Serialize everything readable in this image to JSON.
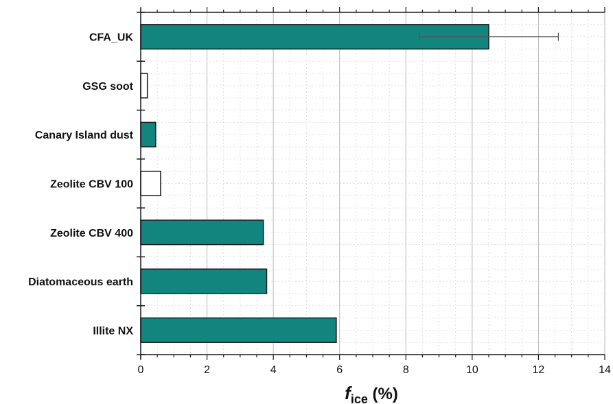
{
  "chart_data": {
    "type": "bar",
    "orientation": "horizontal",
    "categories": [
      "CFA_UK",
      "GSG soot",
      "Canary Island dust",
      "Zeolite CBV 100",
      "Zeolite CBV 400",
      "Diatomaceous earth",
      "Illite NX"
    ],
    "values": [
      10.5,
      0.2,
      0.45,
      0.6,
      3.7,
      3.8,
      5.9
    ],
    "error_bars": [
      {
        "category": "CFA_UK",
        "low": 8.4,
        "high": 12.6
      }
    ],
    "bar_fill": [
      "filled",
      "open",
      "filled",
      "open",
      "filled",
      "filled",
      "filled"
    ],
    "xlim": [
      0,
      14
    ],
    "x_ticks": [
      0,
      2,
      4,
      6,
      8,
      10,
      12,
      14
    ],
    "xlabel_main": "f",
    "xlabel_sub": "ice",
    "xlabel_unit": " (%)",
    "grid": true,
    "colors": {
      "bar": "#11857e",
      "bar_edge": "#1a1a1a",
      "open_bar": "#ffffff",
      "grid_major": "#b9b9b9",
      "grid_minor": "#d9d9d9",
      "error_bar": "#555555",
      "axis": "#1a1a1a"
    }
  }
}
